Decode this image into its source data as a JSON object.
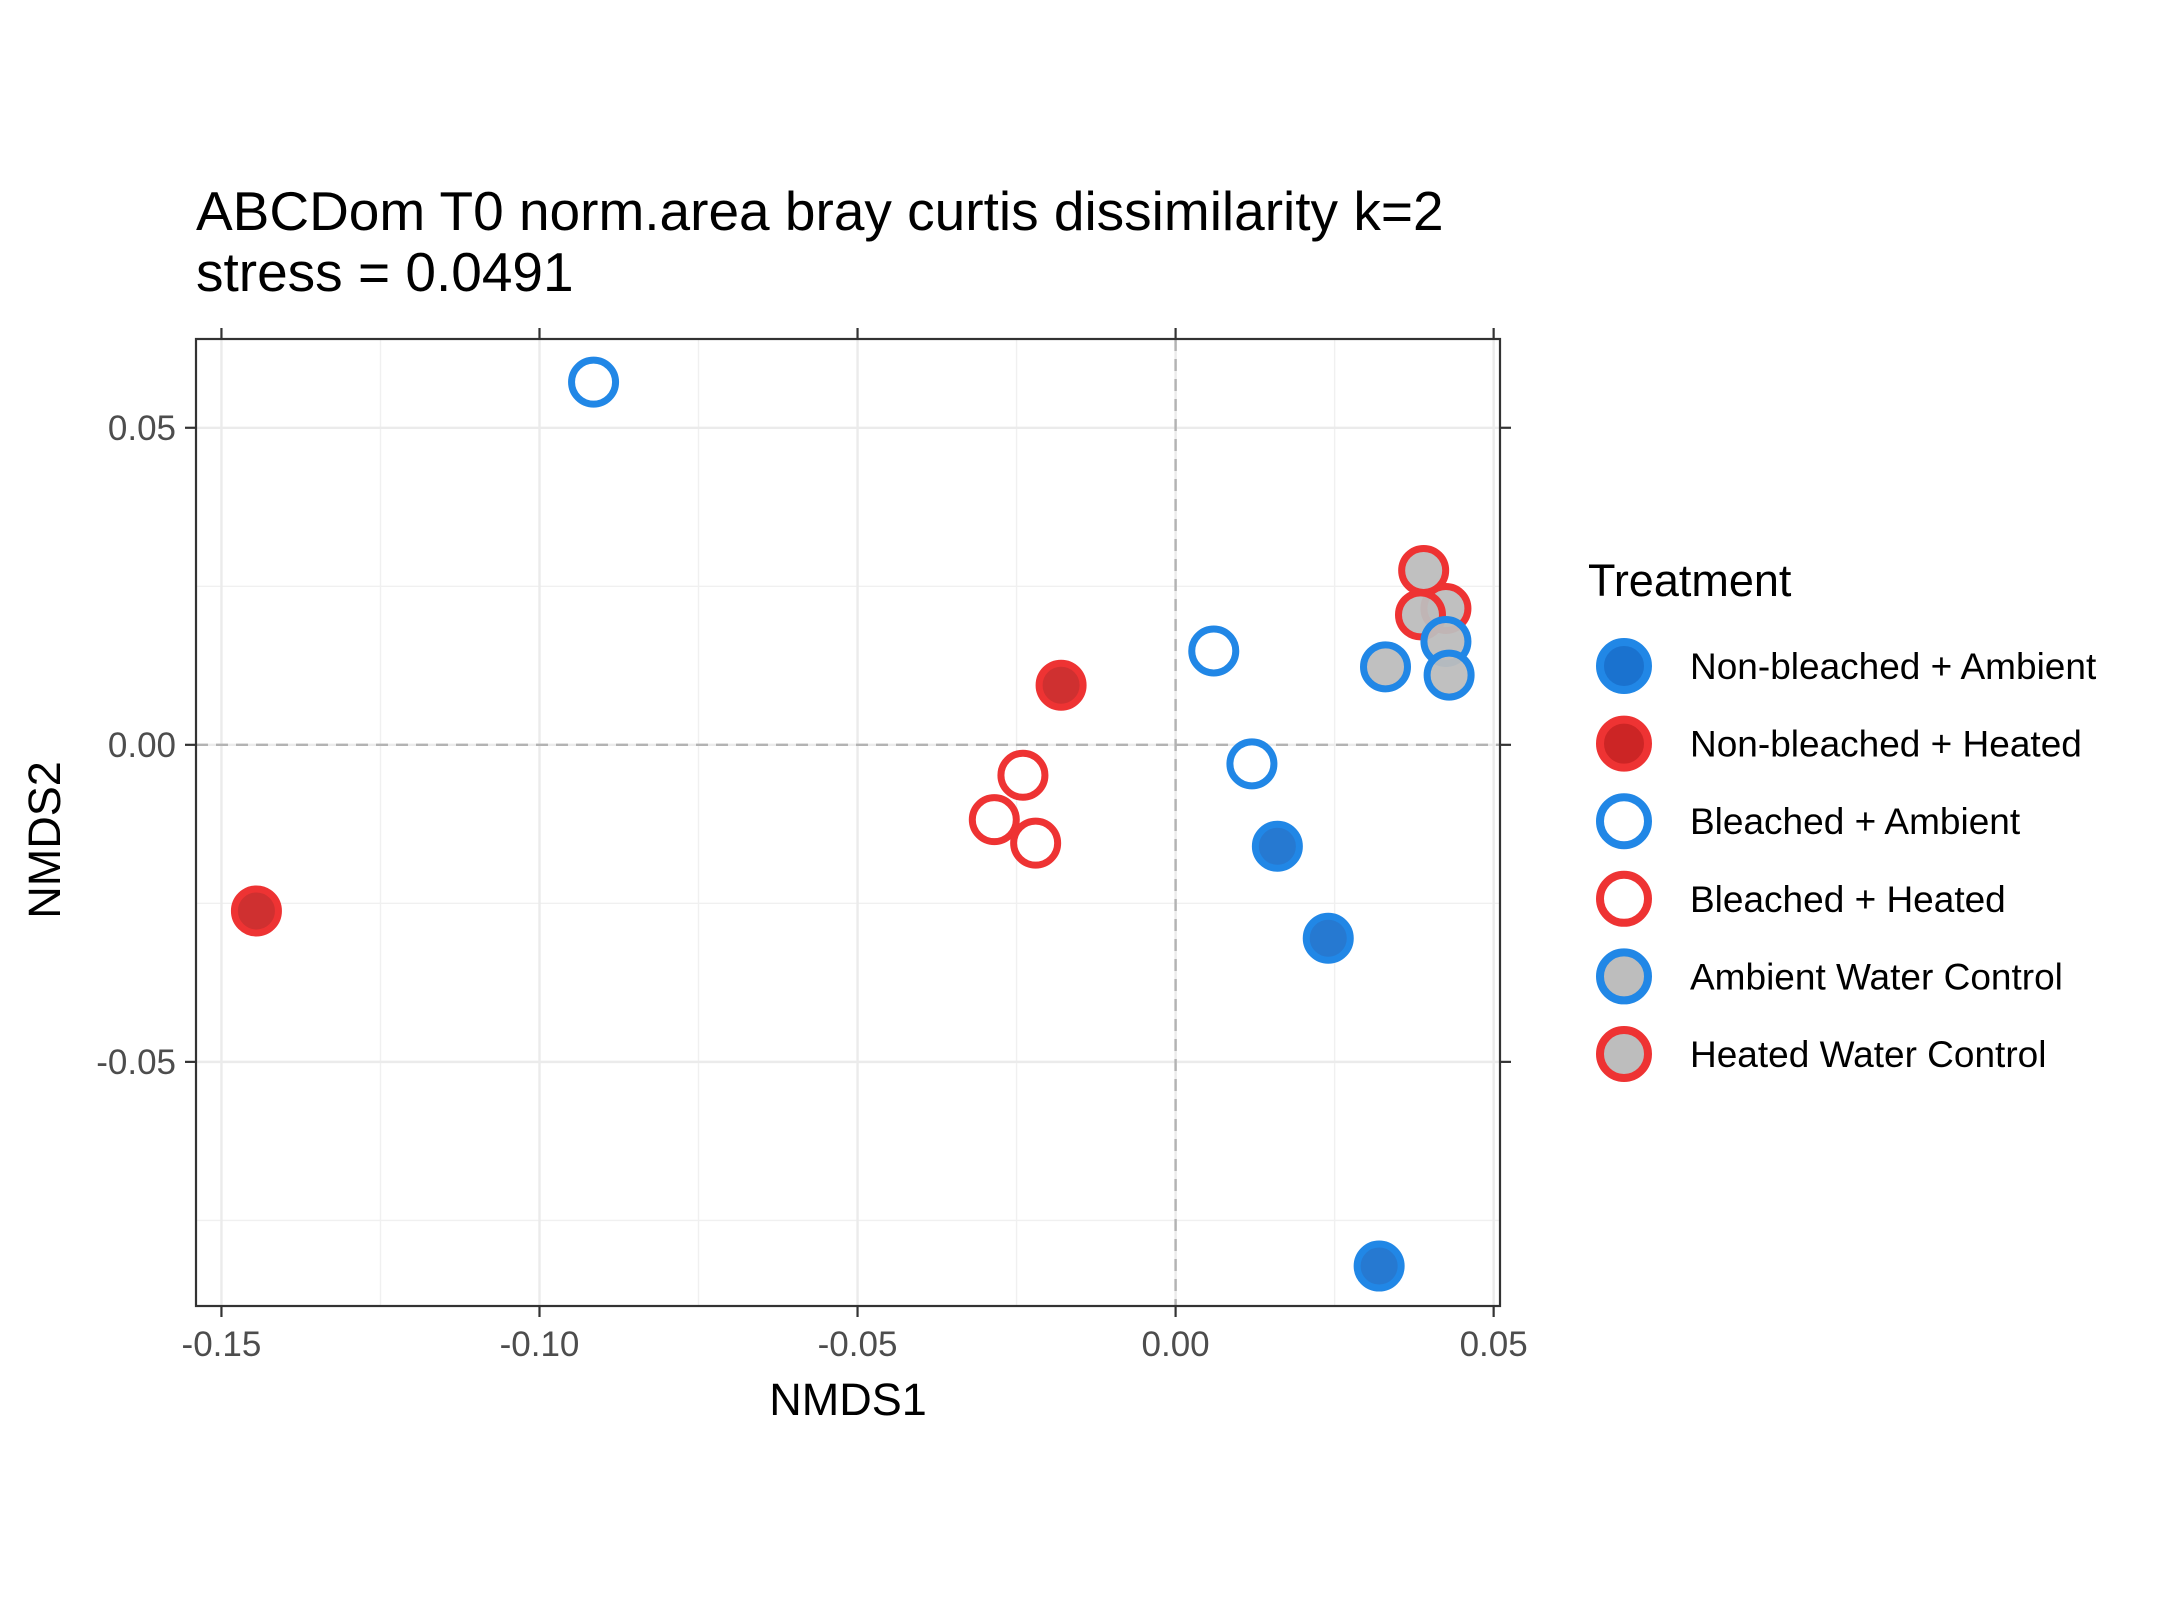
{
  "chart_data": {
    "type": "scatter",
    "title": "ABCDom T0 norm.area bray curtis dissimilarity k=2",
    "subtitle": "stress = 0.0491",
    "xlabel": "NMDS1",
    "ylabel": "NMDS2",
    "xlim": [
      -0.154,
      0.051
    ],
    "ylim": [
      -0.0885,
      0.064
    ],
    "xticks": [
      -0.15,
      -0.1,
      -0.05,
      0.0,
      0.05
    ],
    "xtick_labels": [
      "-0.15",
      "-0.10",
      "-0.05",
      "0.00",
      "0.05"
    ],
    "yticks": [
      -0.05,
      0.0,
      0.05
    ],
    "ytick_labels": [
      "-0.05",
      "0.00",
      "0.05"
    ],
    "reference_lines": {
      "x": 0,
      "y": 0,
      "style": "dashed",
      "color": "#b3b3b3"
    },
    "grid": true,
    "legend": {
      "title": "Treatment",
      "position": "right"
    },
    "series": [
      {
        "name": "Non-bleached + Ambient",
        "stroke": "#2187e6",
        "fill": "#1a72cf",
        "points": [
          {
            "x": 0.016,
            "y": -0.016
          },
          {
            "x": 0.024,
            "y": -0.0305
          },
          {
            "x": 0.032,
            "y": -0.0822
          }
        ]
      },
      {
        "name": "Non-bleached + Heated",
        "stroke": "#ee3333",
        "fill": "#cc2525",
        "points": [
          {
            "x": -0.018,
            "y": 0.0094
          },
          {
            "x": -0.1445,
            "y": -0.0262
          }
        ]
      },
      {
        "name": "Bleached + Ambient",
        "stroke": "#2187e6",
        "fill": "#ffffff",
        "points": [
          {
            "x": -0.0915,
            "y": 0.0572
          },
          {
            "x": 0.006,
            "y": 0.0148
          },
          {
            "x": 0.012,
            "y": -0.003
          }
        ]
      },
      {
        "name": "Bleached + Heated",
        "stroke": "#ee3333",
        "fill": "#ffffff",
        "points": [
          {
            "x": -0.024,
            "y": -0.0048
          },
          {
            "x": -0.0285,
            "y": -0.0118
          },
          {
            "x": -0.022,
            "y": -0.0155
          }
        ]
      },
      {
        "name": "Heated Water Control",
        "stroke": "#ee3333",
        "fill": "#bdbdbd",
        "points": [
          {
            "x": 0.039,
            "y": 0.0275
          },
          {
            "x": 0.0425,
            "y": 0.0215
          },
          {
            "x": 0.0385,
            "y": 0.0205
          }
        ]
      },
      {
        "name": "Ambient Water Control",
        "stroke": "#2187e6",
        "fill": "#bdbdbd",
        "points": [
          {
            "x": 0.033,
            "y": 0.0123
          },
          {
            "x": 0.0425,
            "y": 0.0163
          },
          {
            "x": 0.043,
            "y": 0.011
          }
        ]
      }
    ],
    "legend_entries": [
      {
        "label": "Non-bleached + Ambient",
        "stroke": "#2187e6",
        "fill": "#1a72cf"
      },
      {
        "label": "Non-bleached + Heated",
        "stroke": "#ee3333",
        "fill": "#cc2525"
      },
      {
        "label": "Bleached + Ambient",
        "stroke": "#2187e6",
        "fill": "#ffffff"
      },
      {
        "label": "Bleached + Heated",
        "stroke": "#ee3333",
        "fill": "#ffffff"
      },
      {
        "label": "Ambient Water Control",
        "stroke": "#2187e6",
        "fill": "#bdbdbd"
      },
      {
        "label": "Heated Water Control",
        "stroke": "#ee3333",
        "fill": "#bdbdbd"
      }
    ]
  }
}
